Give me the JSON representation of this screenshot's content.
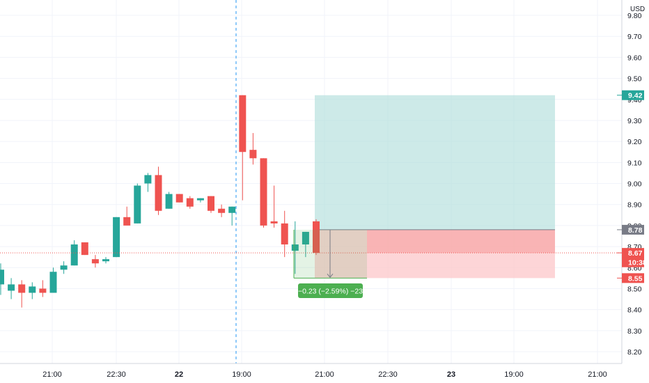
{
  "chart_data": {
    "type": "candlestick",
    "currency": "USD",
    "ylim": [
      8.13,
      9.85
    ],
    "y_ticks": [
      8.2,
      8.3,
      8.4,
      8.5,
      8.6,
      8.7,
      8.8,
      8.9,
      9.0,
      9.1,
      9.2,
      9.3,
      9.4,
      9.5,
      9.6,
      9.7,
      9.8
    ],
    "x_ticks": [
      "21:00",
      "22:30",
      "22",
      "19:00",
      "21:00",
      "22:30",
      "23",
      "19:00",
      "21:00"
    ],
    "candles": [
      {
        "o": 8.52,
        "h": 8.62,
        "l": 8.47,
        "c": 8.59
      },
      {
        "o": 8.49,
        "h": 8.55,
        "l": 8.45,
        "c": 8.52
      },
      {
        "o": 8.52,
        "h": 8.54,
        "l": 8.41,
        "c": 8.48
      },
      {
        "o": 8.48,
        "h": 8.53,
        "l": 8.45,
        "c": 8.51
      },
      {
        "o": 8.5,
        "h": 8.54,
        "l": 8.46,
        "c": 8.48
      },
      {
        "o": 8.48,
        "h": 8.6,
        "l": 8.48,
        "c": 8.58
      },
      {
        "o": 8.59,
        "h": 8.63,
        "l": 8.57,
        "c": 8.61
      },
      {
        "o": 8.61,
        "h": 8.73,
        "l": 8.61,
        "c": 8.71
      },
      {
        "o": 8.72,
        "h": 8.72,
        "l": 8.66,
        "c": 8.66
      },
      {
        "o": 8.64,
        "h": 8.66,
        "l": 8.6,
        "c": 8.62
      },
      {
        "o": 8.63,
        "h": 8.65,
        "l": 8.62,
        "c": 8.64
      },
      {
        "o": 8.65,
        "h": 8.84,
        "l": 8.65,
        "c": 8.84
      },
      {
        "o": 8.84,
        "h": 8.89,
        "l": 8.81,
        "c": 8.8
      },
      {
        "o": 8.81,
        "h": 9.0,
        "l": 8.81,
        "c": 8.99
      },
      {
        "o": 9.0,
        "h": 9.05,
        "l": 8.96,
        "c": 9.04
      },
      {
        "o": 9.04,
        "h": 9.08,
        "l": 8.85,
        "c": 8.87
      },
      {
        "o": 8.88,
        "h": 8.96,
        "l": 8.88,
        "c": 8.95
      },
      {
        "o": 8.95,
        "h": 8.95,
        "l": 8.91,
        "c": 8.91
      },
      {
        "o": 8.93,
        "h": 8.94,
        "l": 8.88,
        "c": 8.89
      },
      {
        "o": 8.92,
        "h": 8.93,
        "l": 8.91,
        "c": 8.93
      },
      {
        "o": 8.94,
        "h": 8.94,
        "l": 8.86,
        "c": 8.87
      },
      {
        "o": 8.88,
        "h": 8.9,
        "l": 8.84,
        "c": 8.86
      },
      {
        "o": 8.86,
        "h": 8.89,
        "l": 8.8,
        "c": 8.89
      },
      {
        "o": 9.42,
        "h": 9.42,
        "l": 8.92,
        "c": 9.15
      },
      {
        "o": 9.16,
        "h": 9.24,
        "l": 9.09,
        "c": 9.12
      },
      {
        "o": 9.12,
        "h": 9.12,
        "l": 8.79,
        "c": 8.8
      },
      {
        "o": 8.82,
        "h": 8.99,
        "l": 8.79,
        "c": 8.81
      },
      {
        "o": 8.81,
        "h": 8.87,
        "l": 8.65,
        "c": 8.71
      },
      {
        "o": 8.68,
        "h": 8.82,
        "l": 8.57,
        "c": 8.71
      },
      {
        "o": 8.71,
        "h": 8.77,
        "l": 8.65,
        "c": 8.77
      },
      {
        "o": 8.82,
        "h": 8.83,
        "l": 8.66,
        "c": 8.67
      }
    ],
    "price_tags": [
      {
        "label": "9.42",
        "value": 9.42,
        "color": "#26a69a"
      },
      {
        "label": "8.78",
        "value": 8.78,
        "color": "#787b86"
      },
      {
        "label": "8.67",
        "value": 8.67,
        "color": "#ef5350"
      },
      {
        "label": "10:38",
        "value": 8.625,
        "color": "#ef5350"
      },
      {
        "label": "8.55",
        "value": 8.55,
        "color": "#ef5350"
      }
    ],
    "long_position": {
      "entry": 8.78,
      "target": 9.42,
      "stop": 8.55
    },
    "current_price": 8.67,
    "measure": {
      "label": "−0.23 (−2.59%) −23",
      "from": 8.78,
      "to": 8.55
    },
    "colors": {
      "up": "#26a69a",
      "down": "#ef5350",
      "profit": "#b2dfdb",
      "loss": "#fccbcd",
      "measure": "#4caf50"
    }
  }
}
